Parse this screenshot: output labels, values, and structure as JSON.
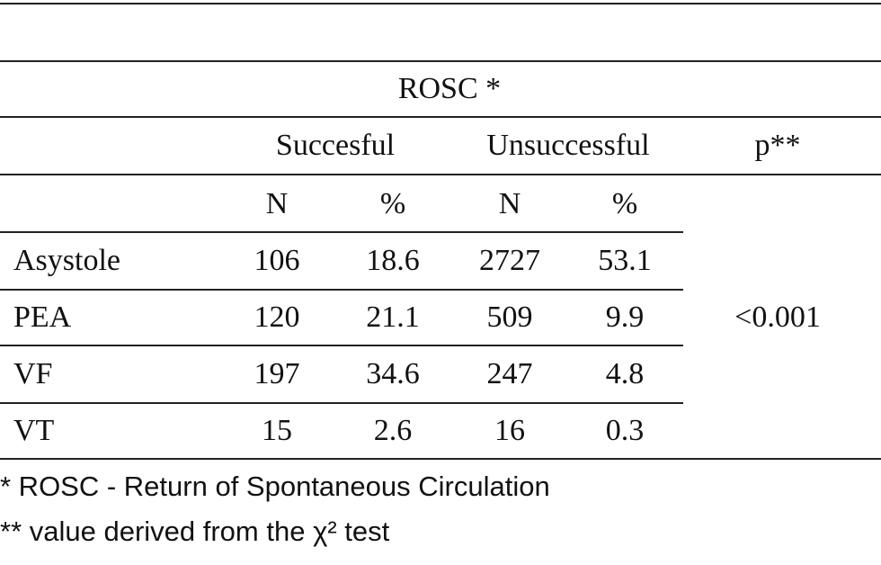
{
  "table": {
    "title": "ROSC *",
    "groups": [
      "Succesful",
      "Unsuccessful"
    ],
    "p_header": "p**",
    "subheaders": [
      "N",
      "%",
      "N",
      "%"
    ],
    "rows": [
      [
        "Asystole",
        "106",
        "18.6",
        "2727",
        "53.1"
      ],
      [
        "PEA",
        "120",
        "21.1",
        "509",
        "9.9"
      ],
      [
        "VF",
        "197",
        "34.6",
        "247",
        "4.8"
      ],
      [
        "VT",
        "15",
        "2.6",
        "16",
        "0.3"
      ]
    ],
    "p_value": "<0.001"
  },
  "footnotes": [
    "*  ROSC - Return of Spontaneous Circulation",
    "** value derived from the χ² test"
  ]
}
